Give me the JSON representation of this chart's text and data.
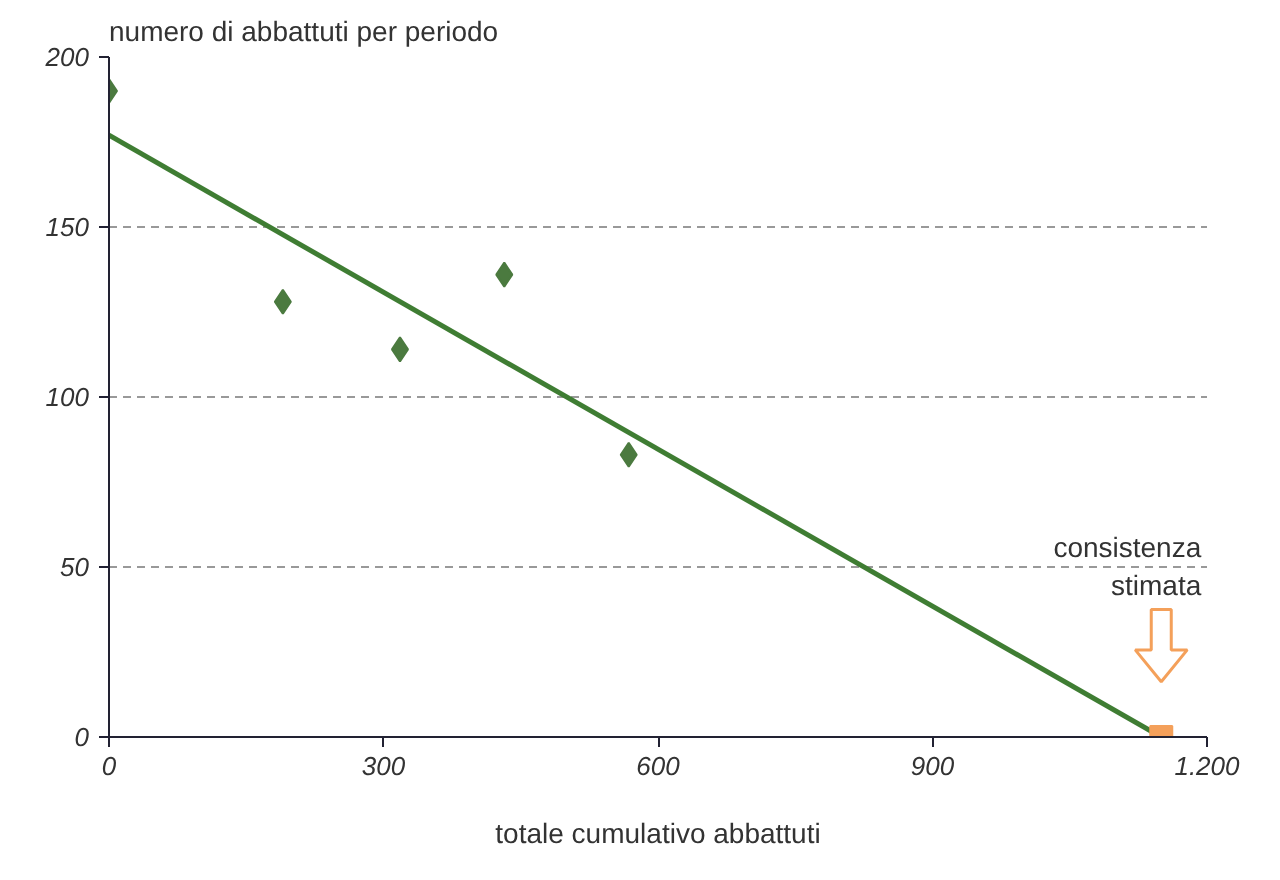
{
  "chart_data": {
    "type": "scatter",
    "xlabel": "totale cumulativo abbattuti",
    "ylabel": "numero di abbattuti per periodo",
    "series": [
      {
        "color": "#4b7a3f",
        "marker": "diamond",
        "x": [
          0,
          190,
          318,
          432,
          568
        ],
        "values": [
          190,
          128,
          114,
          136,
          83
        ]
      },
      {
        "type": "line",
        "color": "#3f7d33",
        "marker": "none",
        "x": [
          0,
          1150
        ],
        "values": [
          177,
          0
        ]
      },
      {
        "type": "scatter",
        "color": "#f4a05a",
        "marker": "square",
        "x": [
          1150
        ],
        "values": [
          0
        ]
      }
    ],
    "annotations": [
      "consistenza\nstimata"
    ],
    "xlim": [
      0,
      1200
    ],
    "ylim": [
      0,
      200
    ],
    "xticks": [
      0,
      300,
      600,
      900,
      {
        "value": 1200,
        "label": "1.200"
      }
    ],
    "yticks": [
      0,
      50,
      100,
      150,
      200
    ],
    "grid": "y"
  }
}
